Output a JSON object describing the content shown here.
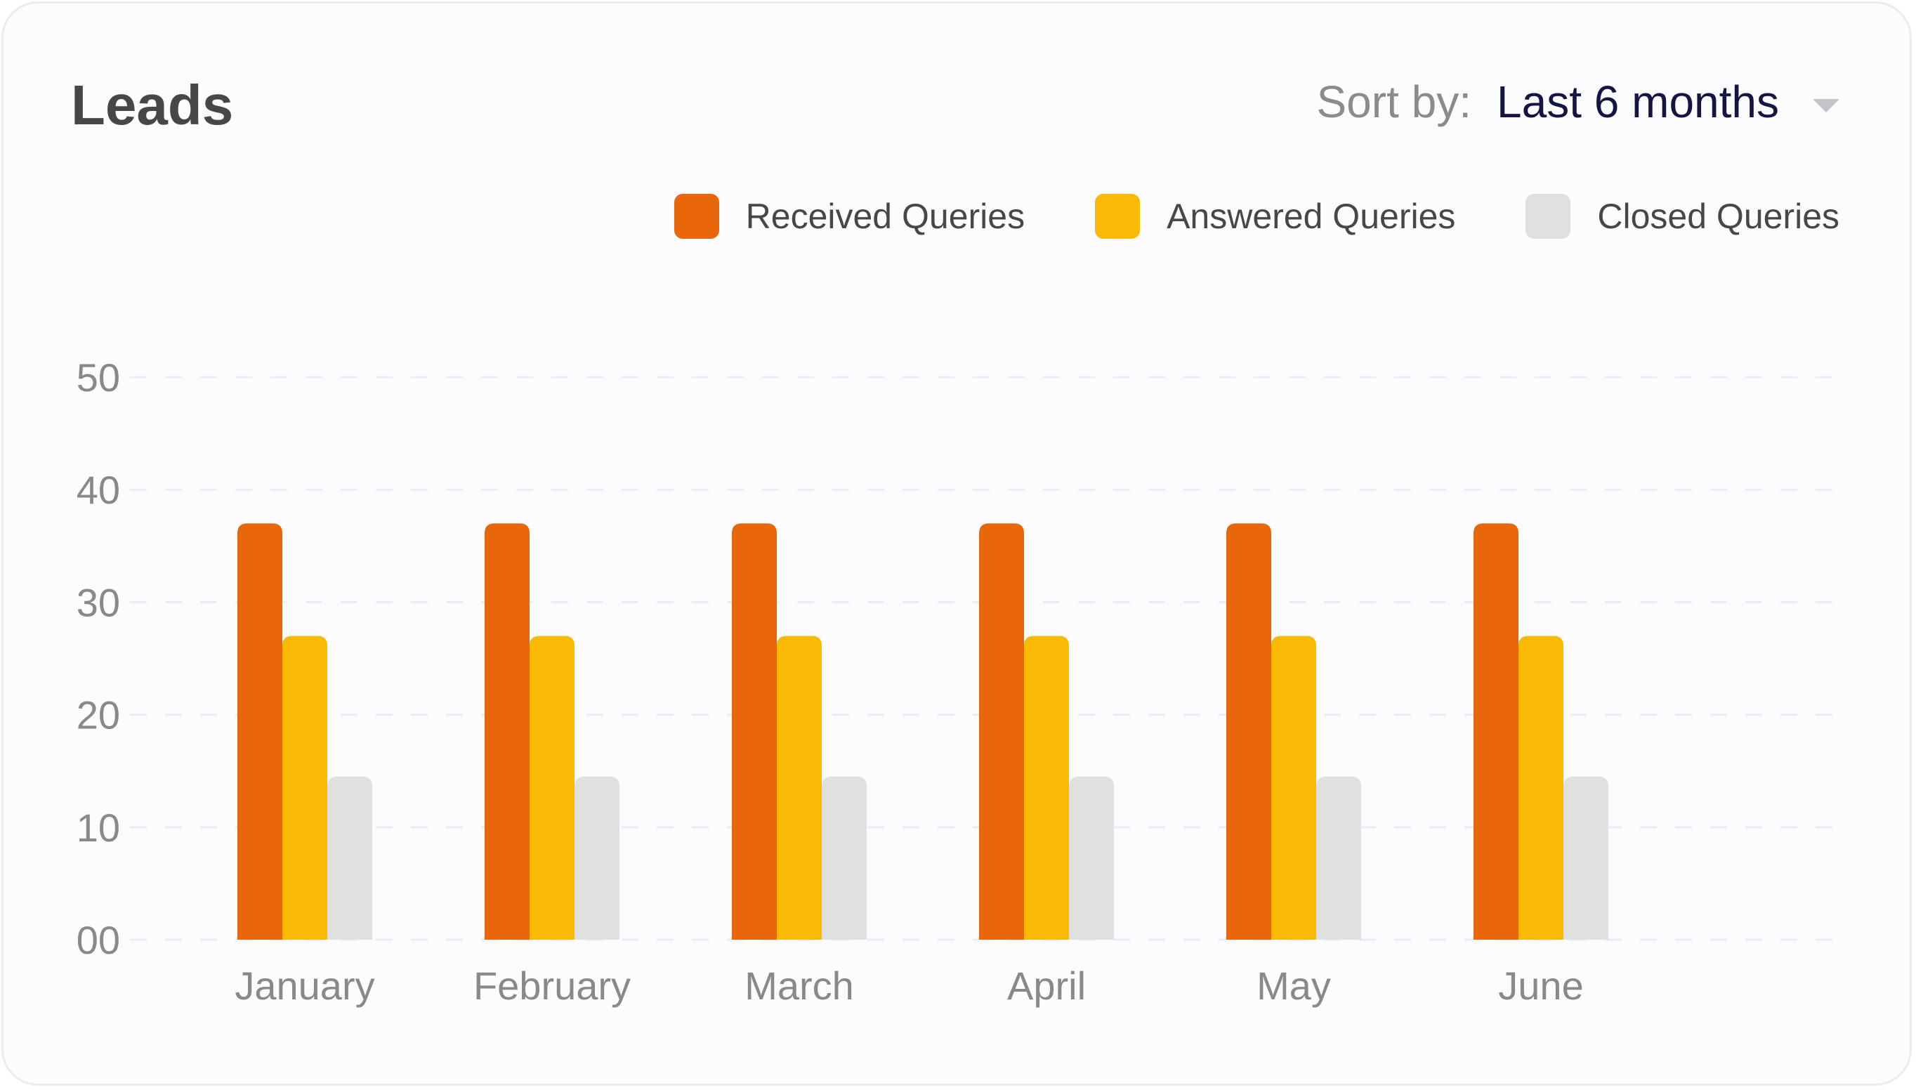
{
  "header": {
    "title": "Leads",
    "sort_label": "Sort by:",
    "sort_value": "Last 6 months"
  },
  "icons": {
    "sort_dropdown": "chevron-down-icon"
  },
  "colors": {
    "received": "#ea660a",
    "answered": "#fab905",
    "closed": "#e0e0e0",
    "gridline": "#ebebf4",
    "tick_label": "#898989"
  },
  "chart_data": {
    "type": "bar",
    "title": "Leads",
    "xlabel": "",
    "ylabel": "",
    "categories": [
      "January",
      "February",
      "March",
      "April",
      "May",
      "June"
    ],
    "series": [
      {
        "name": "Received Queries",
        "values": [
          37,
          37,
          37,
          37,
          37,
          37
        ]
      },
      {
        "name": "Answered Queries",
        "values": [
          27,
          27,
          27,
          27,
          27,
          27
        ]
      },
      {
        "name": "Closed Queries",
        "values": [
          14.5,
          14.5,
          14.5,
          14.5,
          14.5,
          14.5
        ]
      }
    ],
    "ylim": [
      0,
      50
    ],
    "yticks": [
      0,
      10,
      20,
      30,
      40,
      50
    ],
    "ytick_labels": [
      "00",
      "10",
      "20",
      "30",
      "40",
      "50"
    ],
    "grid": true,
    "grid_style": "dashed",
    "legend_position": "top-right"
  }
}
